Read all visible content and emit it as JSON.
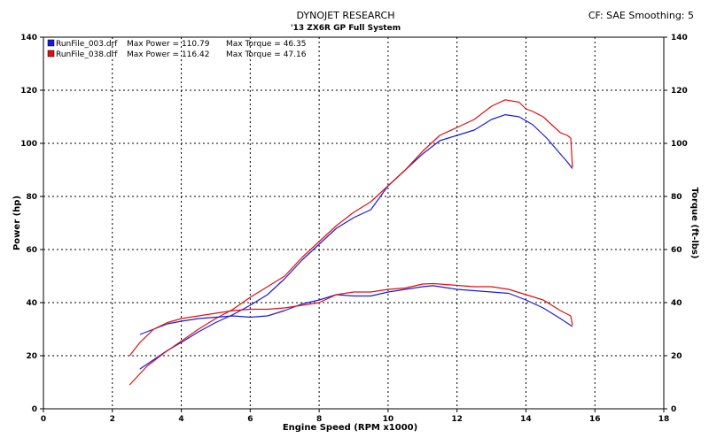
{
  "header": {
    "title": "DYNOJET RESEARCH",
    "subtitle": "'13 ZX6R GP Full System",
    "cf_text": "CF: SAE  Smoothing: 5"
  },
  "chart_data": {
    "type": "line",
    "xlabel": "Engine Speed (RPM x1000)",
    "ylabel": "Power (hp)",
    "y2label": "Torque (ft-lbs)",
    "xlim": [
      0,
      18
    ],
    "ylim": [
      0,
      140
    ],
    "y2lim": [
      0,
      140
    ],
    "x_ticks": [
      "0",
      "2",
      "4",
      "6",
      "8",
      "10",
      "12",
      "14",
      "16",
      "18"
    ],
    "y_ticks": [
      "0",
      "20",
      "40",
      "60",
      "80",
      "100",
      "120",
      "140"
    ],
    "grid": true,
    "legend": {
      "position": "top-left",
      "entries": [
        {
          "file": "RunFile_003.drf",
          "power_label": "Max Power = 110.79",
          "torque_label": "Max Torque = 46.35",
          "color": "#1a1adf"
        },
        {
          "file": "RunFile_038.drf",
          "power_label": "Max Power = 116.42",
          "torque_label": "Max Torque = 47.16",
          "color": "#e01010"
        }
      ]
    },
    "series": [
      {
        "name": "RunFile_003.drf",
        "measure": "power",
        "color": "#1a1adf",
        "points": [
          [
            2.8,
            15
          ],
          [
            3.2,
            18.5
          ],
          [
            3.6,
            22
          ],
          [
            4.0,
            25
          ],
          [
            4.5,
            29
          ],
          [
            5.0,
            32.5
          ],
          [
            5.5,
            35.5
          ],
          [
            6.0,
            39
          ],
          [
            6.5,
            43
          ],
          [
            7.0,
            49
          ],
          [
            7.5,
            56
          ],
          [
            8.0,
            62
          ],
          [
            8.5,
            68
          ],
          [
            9.0,
            72
          ],
          [
            9.5,
            75
          ],
          [
            10.0,
            84
          ],
          [
            10.5,
            90
          ],
          [
            11.0,
            96
          ],
          [
            11.5,
            101
          ],
          [
            12.0,
            103
          ],
          [
            12.5,
            105
          ],
          [
            13.0,
            109
          ],
          [
            13.4,
            110.8
          ],
          [
            13.8,
            110
          ],
          [
            14.2,
            107
          ],
          [
            14.6,
            102
          ],
          [
            15.0,
            96
          ],
          [
            15.2,
            93
          ],
          [
            15.35,
            90.5
          ]
        ]
      },
      {
        "name": "RunFile_038.drf",
        "measure": "power",
        "color": "#e01010",
        "points": [
          [
            2.5,
            9
          ],
          [
            3.0,
            16
          ],
          [
            3.5,
            21
          ],
          [
            4.0,
            25.5
          ],
          [
            4.5,
            30
          ],
          [
            5.0,
            34
          ],
          [
            5.5,
            37.5
          ],
          [
            6.0,
            42
          ],
          [
            6.5,
            46
          ],
          [
            7.0,
            50
          ],
          [
            7.5,
            57
          ],
          [
            8.0,
            63
          ],
          [
            8.5,
            69
          ],
          [
            9.0,
            74
          ],
          [
            9.5,
            78
          ],
          [
            10.0,
            84
          ],
          [
            10.5,
            90
          ],
          [
            11.0,
            97
          ],
          [
            11.5,
            103
          ],
          [
            12.0,
            106
          ],
          [
            12.5,
            109
          ],
          [
            13.0,
            114
          ],
          [
            13.4,
            116.4
          ],
          [
            13.8,
            115.5
          ],
          [
            14.0,
            113
          ],
          [
            14.2,
            112
          ],
          [
            14.5,
            110
          ],
          [
            15.0,
            104
          ],
          [
            15.2,
            103
          ],
          [
            15.3,
            102
          ],
          [
            15.35,
            91
          ]
        ]
      },
      {
        "name": "RunFile_003.drf",
        "measure": "torque",
        "color": "#1a1adf",
        "points": [
          [
            2.8,
            28
          ],
          [
            3.2,
            30
          ],
          [
            3.6,
            32
          ],
          [
            4.0,
            33
          ],
          [
            4.5,
            34
          ],
          [
            5.0,
            34.5
          ],
          [
            5.5,
            35
          ],
          [
            6.0,
            34.5
          ],
          [
            6.5,
            35
          ],
          [
            7.0,
            37
          ],
          [
            7.5,
            39.5
          ],
          [
            8.0,
            41
          ],
          [
            8.5,
            43
          ],
          [
            9.0,
            42.5
          ],
          [
            9.5,
            42.5
          ],
          [
            10.0,
            44
          ],
          [
            10.5,
            45
          ],
          [
            11.0,
            46
          ],
          [
            11.3,
            46.35
          ],
          [
            11.5,
            46
          ],
          [
            12.0,
            45
          ],
          [
            12.5,
            44.5
          ],
          [
            13.0,
            44
          ],
          [
            13.5,
            43.5
          ],
          [
            14.0,
            41
          ],
          [
            14.5,
            38
          ],
          [
            15.0,
            34
          ],
          [
            15.35,
            31
          ]
        ]
      },
      {
        "name": "RunFile_038.drf",
        "measure": "torque",
        "color": "#e01010",
        "points": [
          [
            2.5,
            20
          ],
          [
            2.8,
            25
          ],
          [
            3.2,
            30
          ],
          [
            3.6,
            32.5
          ],
          [
            4.0,
            34
          ],
          [
            4.5,
            35
          ],
          [
            5.0,
            36
          ],
          [
            5.5,
            37
          ],
          [
            6.0,
            37.5
          ],
          [
            6.5,
            37.5
          ],
          [
            7.0,
            38
          ],
          [
            7.5,
            39
          ],
          [
            8.0,
            40
          ],
          [
            8.5,
            43
          ],
          [
            9.0,
            44
          ],
          [
            9.5,
            44
          ],
          [
            10.0,
            45
          ],
          [
            10.5,
            45.5
          ],
          [
            11.0,
            47
          ],
          [
            11.3,
            47.16
          ],
          [
            11.5,
            47
          ],
          [
            12.0,
            46.5
          ],
          [
            12.5,
            46
          ],
          [
            13.0,
            46
          ],
          [
            13.5,
            45
          ],
          [
            14.0,
            43
          ],
          [
            14.5,
            41
          ],
          [
            15.0,
            37
          ],
          [
            15.3,
            35
          ],
          [
            15.35,
            31.5
          ]
        ]
      }
    ]
  }
}
